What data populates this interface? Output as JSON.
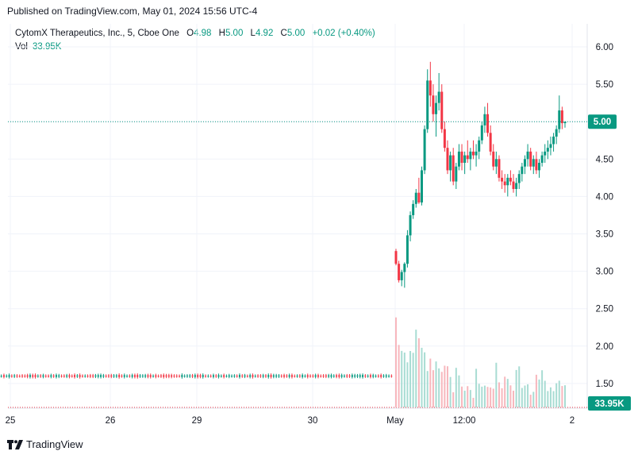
{
  "published": "Published on TradingView.com, May 01, 2024 15:56 UTC-4",
  "legend": {
    "symbol": "CytomX Therapeutics, Inc., 5, Cboe One",
    "o_label": "O",
    "o": "4.98",
    "h_label": "H",
    "h": "5.00",
    "l_label": "L",
    "l": "4.92",
    "c_label": "C",
    "c": "5.00",
    "change": "+0.02 (+0.40%)",
    "vol_label": "Vol",
    "vol": "33.95K"
  },
  "brand": "TradingView",
  "colors": {
    "up": "#089981",
    "down": "#F23645",
    "grid": "#f0f3fa",
    "axis_text": "#131722"
  },
  "chart_data": {
    "type": "candlestick",
    "x_ticks": [
      "25",
      "26",
      "29",
      "30",
      "May",
      "12:00",
      "2"
    ],
    "y_ticks": [
      "6.00",
      "5.50",
      "5.00",
      "4.50",
      "4.00",
      "3.50",
      "3.00",
      "2.50",
      "2.00",
      "1.50"
    ],
    "ylim": [
      1.35,
      6.2
    ],
    "last_price": 5.0,
    "last_price_label": "5.00",
    "volume_label": "33.95K",
    "grid": true,
    "segments": [
      {
        "name": "pre-event",
        "x_start": 0,
        "x_end": 495,
        "base": 1.6,
        "count": 150
      },
      {
        "name": "May 01 session",
        "ohlc": [
          [
            3.27,
            3.3,
            3.08,
            3.1
          ],
          [
            3.1,
            3.14,
            2.85,
            2.88
          ],
          [
            2.88,
            3.02,
            2.8,
            2.99
          ],
          [
            2.99,
            3.12,
            2.78,
            3.1
          ],
          [
            3.1,
            3.55,
            3.05,
            3.48
          ],
          [
            3.48,
            3.8,
            3.4,
            3.75
          ],
          [
            3.75,
            3.95,
            3.7,
            3.9
          ],
          [
            3.9,
            4.1,
            3.85,
            4.05
          ],
          [
            4.05,
            4.25,
            3.9,
            3.92
          ],
          [
            3.92,
            4.4,
            3.88,
            4.35
          ],
          [
            4.35,
            4.95,
            4.3,
            4.9
          ],
          [
            4.9,
            5.7,
            4.85,
            5.55
          ],
          [
            5.55,
            5.8,
            5.2,
            5.35
          ],
          [
            5.35,
            5.5,
            5.0,
            5.1
          ],
          [
            5.1,
            5.35,
            4.8,
            5.25
          ],
          [
            5.25,
            5.65,
            5.15,
            5.4
          ],
          [
            5.4,
            5.5,
            4.85,
            4.9
          ],
          [
            4.9,
            5.0,
            4.6,
            4.65
          ],
          [
            4.65,
            4.75,
            4.3,
            4.35
          ],
          [
            4.35,
            4.6,
            4.2,
            4.55
          ],
          [
            4.55,
            4.65,
            4.15,
            4.2
          ],
          [
            4.2,
            4.45,
            4.1,
            4.4
          ],
          [
            4.4,
            4.7,
            4.35,
            4.6
          ],
          [
            4.6,
            4.7,
            4.35,
            4.45
          ],
          [
            4.45,
            4.6,
            4.3,
            4.55
          ],
          [
            4.55,
            4.75,
            4.45,
            4.5
          ],
          [
            4.5,
            4.65,
            4.35,
            4.6
          ],
          [
            4.6,
            4.75,
            4.5,
            4.55
          ],
          [
            4.55,
            4.7,
            4.4,
            4.6
          ],
          [
            4.6,
            4.8,
            4.5,
            4.75
          ],
          [
            4.75,
            5.0,
            4.7,
            4.95
          ],
          [
            4.95,
            5.2,
            4.85,
            5.1
          ],
          [
            5.1,
            5.25,
            4.8,
            4.85
          ],
          [
            4.85,
            4.95,
            4.55,
            4.6
          ],
          [
            4.6,
            4.7,
            4.35,
            4.4
          ],
          [
            4.4,
            4.6,
            4.3,
            4.5
          ],
          [
            4.5,
            4.55,
            4.2,
            4.25
          ],
          [
            4.25,
            4.35,
            4.1,
            4.2
          ],
          [
            4.2,
            4.3,
            4.05,
            4.15
          ],
          [
            4.15,
            4.3,
            4.0,
            4.25
          ],
          [
            4.25,
            4.35,
            4.15,
            4.2
          ],
          [
            4.2,
            4.3,
            4.05,
            4.1
          ],
          [
            4.1,
            4.25,
            4.0,
            4.18
          ],
          [
            4.18,
            4.35,
            4.1,
            4.3
          ],
          [
            4.3,
            4.45,
            4.2,
            4.4
          ],
          [
            4.4,
            4.55,
            4.3,
            4.5
          ],
          [
            4.5,
            4.7,
            4.4,
            4.6
          ],
          [
            4.6,
            4.65,
            4.35,
            4.4
          ],
          [
            4.4,
            4.55,
            4.3,
            4.5
          ],
          [
            4.5,
            4.6,
            4.3,
            4.35
          ],
          [
            4.35,
            4.5,
            4.25,
            4.45
          ],
          [
            4.45,
            4.6,
            4.4,
            4.55
          ],
          [
            4.55,
            4.7,
            4.45,
            4.6
          ],
          [
            4.6,
            4.75,
            4.5,
            4.65
          ],
          [
            4.65,
            4.8,
            4.55,
            4.7
          ],
          [
            4.7,
            4.85,
            4.6,
            4.8
          ],
          [
            4.8,
            4.95,
            4.7,
            4.9
          ],
          [
            4.9,
            5.35,
            4.85,
            5.15
          ],
          [
            5.15,
            5.2,
            4.9,
            4.98
          ],
          [
            4.98,
            5.0,
            4.92,
            5.0
          ]
        ]
      }
    ]
  }
}
